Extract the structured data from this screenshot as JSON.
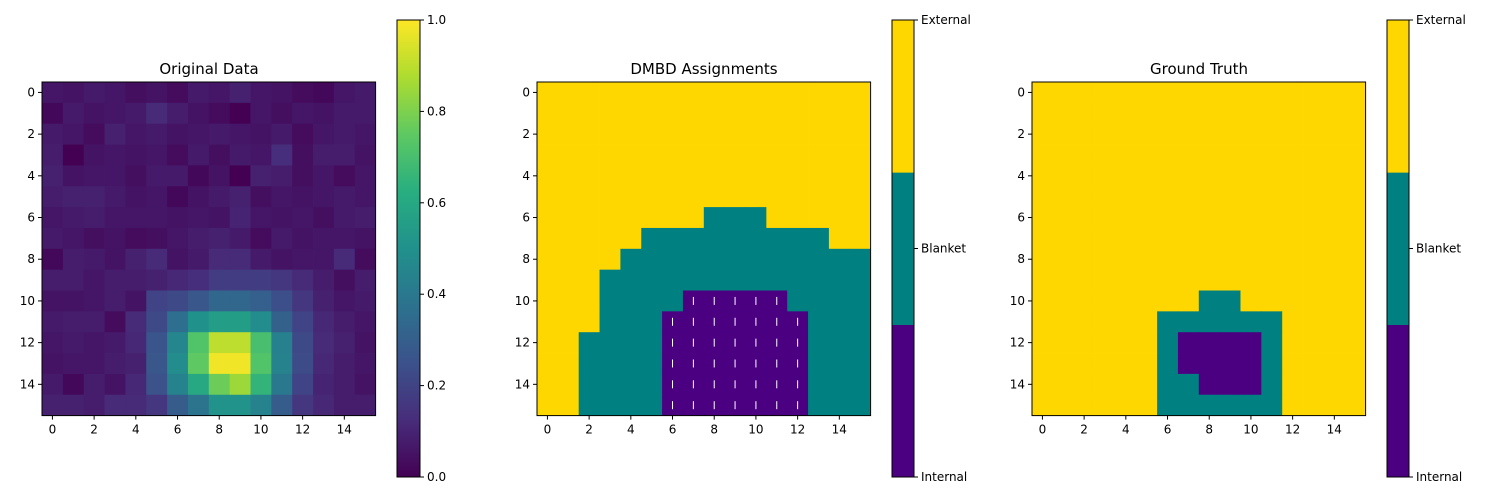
{
  "chart_data": [
    {
      "type": "heatmap",
      "title": "Original Data",
      "colormap": "viridis",
      "shape": [
        16,
        16
      ],
      "x_ticks": [
        "0",
        "2",
        "4",
        "6",
        "8",
        "10",
        "12",
        "14"
      ],
      "y_ticks": [
        "0",
        "2",
        "4",
        "6",
        "8",
        "10",
        "12",
        "14"
      ],
      "colorbar": {
        "range": [
          0.0,
          1.0
        ],
        "ticks": [
          "0.0",
          "0.2",
          "0.4",
          "0.6",
          "0.8",
          "1.0"
        ]
      },
      "values": [
        [
          0.06,
          0.05,
          0.07,
          0.06,
          0.04,
          0.05,
          0.03,
          0.07,
          0.06,
          0.09,
          0.06,
          0.05,
          0.03,
          0.02,
          0.06,
          0.07
        ],
        [
          0.02,
          0.07,
          0.05,
          0.06,
          0.07,
          0.12,
          0.08,
          0.05,
          0.03,
          0.0,
          0.06,
          0.04,
          0.06,
          0.05,
          0.07,
          0.07
        ],
        [
          0.07,
          0.06,
          0.03,
          0.09,
          0.06,
          0.07,
          0.05,
          0.06,
          0.07,
          0.06,
          0.05,
          0.07,
          0.03,
          0.06,
          0.07,
          0.06
        ],
        [
          0.08,
          0.0,
          0.05,
          0.06,
          0.05,
          0.06,
          0.03,
          0.07,
          0.04,
          0.07,
          0.06,
          0.13,
          0.04,
          0.08,
          0.08,
          0.05
        ],
        [
          0.09,
          0.05,
          0.06,
          0.06,
          0.04,
          0.07,
          0.07,
          0.02,
          0.05,
          0.0,
          0.09,
          0.08,
          0.04,
          0.06,
          0.03,
          0.06
        ],
        [
          0.08,
          0.09,
          0.09,
          0.07,
          0.05,
          0.06,
          0.02,
          0.05,
          0.07,
          0.09,
          0.04,
          0.06,
          0.05,
          0.06,
          0.07,
          0.06
        ],
        [
          0.06,
          0.07,
          0.08,
          0.06,
          0.06,
          0.06,
          0.05,
          0.06,
          0.05,
          0.1,
          0.06,
          0.05,
          0.06,
          0.04,
          0.07,
          0.08
        ],
        [
          0.07,
          0.06,
          0.04,
          0.05,
          0.03,
          0.04,
          0.06,
          0.08,
          0.09,
          0.07,
          0.03,
          0.07,
          0.05,
          0.06,
          0.06,
          0.05
        ],
        [
          0.02,
          0.08,
          0.07,
          0.05,
          0.09,
          0.12,
          0.05,
          0.07,
          0.12,
          0.12,
          0.07,
          0.05,
          0.06,
          0.06,
          0.12,
          0.03
        ],
        [
          0.08,
          0.08,
          0.06,
          0.08,
          0.08,
          0.09,
          0.11,
          0.13,
          0.18,
          0.18,
          0.18,
          0.16,
          0.12,
          0.08,
          0.04,
          0.08
        ],
        [
          0.05,
          0.05,
          0.06,
          0.08,
          0.05,
          0.2,
          0.22,
          0.27,
          0.33,
          0.33,
          0.3,
          0.24,
          0.16,
          0.09,
          0.06,
          0.07
        ],
        [
          0.07,
          0.08,
          0.08,
          0.03,
          0.12,
          0.22,
          0.36,
          0.5,
          0.55,
          0.55,
          0.48,
          0.31,
          0.2,
          0.11,
          0.08,
          0.06
        ],
        [
          0.06,
          0.07,
          0.06,
          0.07,
          0.11,
          0.26,
          0.46,
          0.72,
          0.9,
          0.9,
          0.7,
          0.43,
          0.22,
          0.12,
          0.09,
          0.05
        ],
        [
          0.05,
          0.06,
          0.06,
          0.08,
          0.09,
          0.27,
          0.48,
          0.75,
          0.98,
          0.98,
          0.72,
          0.44,
          0.23,
          0.11,
          0.08,
          0.06
        ],
        [
          0.07,
          0.02,
          0.08,
          0.05,
          0.11,
          0.25,
          0.44,
          0.6,
          0.77,
          0.85,
          0.65,
          0.4,
          0.2,
          0.1,
          0.08,
          0.05
        ],
        [
          0.09,
          0.09,
          0.08,
          0.12,
          0.12,
          0.16,
          0.29,
          0.38,
          0.51,
          0.51,
          0.44,
          0.29,
          0.16,
          0.11,
          0.08,
          0.08
        ]
      ]
    },
    {
      "type": "heatmap",
      "title": "DMBD Assignments",
      "categories": [
        "Internal",
        "Blanket",
        "External"
      ],
      "colors": {
        "Internal": "#4b0082",
        "Blanket": "#008080",
        "External": "#ffd700"
      },
      "shape": [
        16,
        16
      ],
      "x_ticks": [
        "0",
        "2",
        "4",
        "6",
        "8",
        "10",
        "12",
        "14"
      ],
      "y_ticks": [
        "0",
        "2",
        "4",
        "6",
        "8",
        "10",
        "12",
        "14"
      ],
      "colorbar": {
        "ticks": [
          "Internal",
          "Blanket",
          "External"
        ]
      },
      "hatch_class": "Internal",
      "values": [
        [
          2,
          2,
          2,
          2,
          2,
          2,
          2,
          2,
          2,
          2,
          2,
          2,
          2,
          2,
          2,
          2
        ],
        [
          2,
          2,
          2,
          2,
          2,
          2,
          2,
          2,
          2,
          2,
          2,
          2,
          2,
          2,
          2,
          2
        ],
        [
          2,
          2,
          2,
          2,
          2,
          2,
          2,
          2,
          2,
          2,
          2,
          2,
          2,
          2,
          2,
          2
        ],
        [
          2,
          2,
          2,
          2,
          2,
          2,
          2,
          2,
          2,
          2,
          2,
          2,
          2,
          2,
          2,
          2
        ],
        [
          2,
          2,
          2,
          2,
          2,
          2,
          2,
          2,
          2,
          2,
          2,
          2,
          2,
          2,
          2,
          2
        ],
        [
          2,
          2,
          2,
          2,
          2,
          2,
          2,
          2,
          2,
          2,
          2,
          2,
          2,
          2,
          2,
          2
        ],
        [
          2,
          2,
          2,
          2,
          2,
          2,
          2,
          2,
          1,
          1,
          1,
          2,
          2,
          2,
          2,
          2
        ],
        [
          2,
          2,
          2,
          2,
          2,
          1,
          1,
          1,
          1,
          1,
          1,
          1,
          1,
          1,
          2,
          2
        ],
        [
          2,
          2,
          2,
          2,
          1,
          1,
          1,
          1,
          1,
          1,
          1,
          1,
          1,
          1,
          1,
          1
        ],
        [
          2,
          2,
          2,
          1,
          1,
          1,
          1,
          1,
          1,
          1,
          1,
          1,
          1,
          1,
          1,
          1
        ],
        [
          2,
          2,
          2,
          1,
          1,
          1,
          1,
          0,
          0,
          0,
          0,
          0,
          1,
          1,
          1,
          1
        ],
        [
          2,
          2,
          2,
          1,
          1,
          1,
          0,
          0,
          0,
          0,
          0,
          0,
          0,
          1,
          1,
          1
        ],
        [
          2,
          2,
          1,
          1,
          1,
          1,
          0,
          0,
          0,
          0,
          0,
          0,
          0,
          1,
          1,
          1
        ],
        [
          2,
          2,
          1,
          1,
          1,
          1,
          0,
          0,
          0,
          0,
          0,
          0,
          0,
          1,
          1,
          1
        ],
        [
          2,
          2,
          1,
          1,
          1,
          1,
          0,
          0,
          0,
          0,
          0,
          0,
          0,
          1,
          1,
          1
        ],
        [
          2,
          2,
          1,
          1,
          1,
          1,
          0,
          0,
          0,
          0,
          0,
          0,
          0,
          1,
          1,
          1
        ]
      ]
    },
    {
      "type": "heatmap",
      "title": "Ground Truth",
      "categories": [
        "Internal",
        "Blanket",
        "External"
      ],
      "colors": {
        "Internal": "#4b0082",
        "Blanket": "#008080",
        "External": "#ffd700"
      },
      "shape": [
        16,
        16
      ],
      "x_ticks": [
        "0",
        "2",
        "4",
        "6",
        "8",
        "10",
        "12",
        "14"
      ],
      "y_ticks": [
        "0",
        "2",
        "4",
        "6",
        "8",
        "10",
        "12",
        "14"
      ],
      "colorbar": {
        "ticks": [
          "Internal",
          "Blanket",
          "External"
        ]
      },
      "values": [
        [
          2,
          2,
          2,
          2,
          2,
          2,
          2,
          2,
          2,
          2,
          2,
          2,
          2,
          2,
          2,
          2
        ],
        [
          2,
          2,
          2,
          2,
          2,
          2,
          2,
          2,
          2,
          2,
          2,
          2,
          2,
          2,
          2,
          2
        ],
        [
          2,
          2,
          2,
          2,
          2,
          2,
          2,
          2,
          2,
          2,
          2,
          2,
          2,
          2,
          2,
          2
        ],
        [
          2,
          2,
          2,
          2,
          2,
          2,
          2,
          2,
          2,
          2,
          2,
          2,
          2,
          2,
          2,
          2
        ],
        [
          2,
          2,
          2,
          2,
          2,
          2,
          2,
          2,
          2,
          2,
          2,
          2,
          2,
          2,
          2,
          2
        ],
        [
          2,
          2,
          2,
          2,
          2,
          2,
          2,
          2,
          2,
          2,
          2,
          2,
          2,
          2,
          2,
          2
        ],
        [
          2,
          2,
          2,
          2,
          2,
          2,
          2,
          2,
          2,
          2,
          2,
          2,
          2,
          2,
          2,
          2
        ],
        [
          2,
          2,
          2,
          2,
          2,
          2,
          2,
          2,
          2,
          2,
          2,
          2,
          2,
          2,
          2,
          2
        ],
        [
          2,
          2,
          2,
          2,
          2,
          2,
          2,
          2,
          2,
          2,
          2,
          2,
          2,
          2,
          2,
          2
        ],
        [
          2,
          2,
          2,
          2,
          2,
          2,
          2,
          2,
          2,
          2,
          2,
          2,
          2,
          2,
          2,
          2
        ],
        [
          2,
          2,
          2,
          2,
          2,
          2,
          2,
          2,
          1,
          1,
          2,
          2,
          2,
          2,
          2,
          2
        ],
        [
          2,
          2,
          2,
          2,
          2,
          2,
          1,
          1,
          1,
          1,
          1,
          1,
          2,
          2,
          2,
          2
        ],
        [
          2,
          2,
          2,
          2,
          2,
          2,
          1,
          0,
          0,
          0,
          0,
          1,
          2,
          2,
          2,
          2
        ],
        [
          2,
          2,
          2,
          2,
          2,
          2,
          1,
          0,
          0,
          0,
          0,
          1,
          2,
          2,
          2,
          2
        ],
        [
          2,
          2,
          2,
          2,
          2,
          2,
          1,
          1,
          0,
          0,
          0,
          1,
          2,
          2,
          2,
          2
        ],
        [
          2,
          2,
          2,
          2,
          2,
          2,
          1,
          1,
          1,
          1,
          1,
          1,
          2,
          2,
          2,
          2
        ]
      ]
    }
  ]
}
